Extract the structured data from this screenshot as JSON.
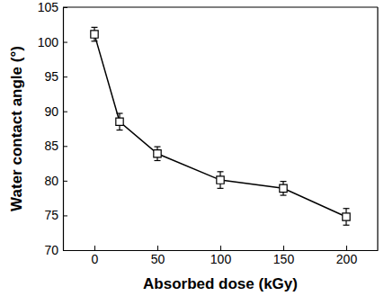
{
  "chart_data": {
    "type": "line",
    "x": [
      0,
      20,
      50,
      100,
      150,
      200
    ],
    "values": [
      101.1,
      88.5,
      83.9,
      80.1,
      78.9,
      74.8
    ],
    "errors": [
      1.0,
      1.2,
      1.0,
      1.2,
      1.0,
      1.2
    ],
    "x_label": "Absorbed dose (kGy)",
    "y_label": "Water contact angle (°)",
    "xlim": [
      -25,
      225
    ],
    "ylim": [
      70,
      105
    ],
    "xticks": [
      0,
      50,
      100,
      150,
      200
    ],
    "yticks": [
      70,
      75,
      80,
      85,
      90,
      95,
      100,
      105
    ],
    "color": "#000000",
    "marker": "square",
    "line_style": "solid"
  }
}
